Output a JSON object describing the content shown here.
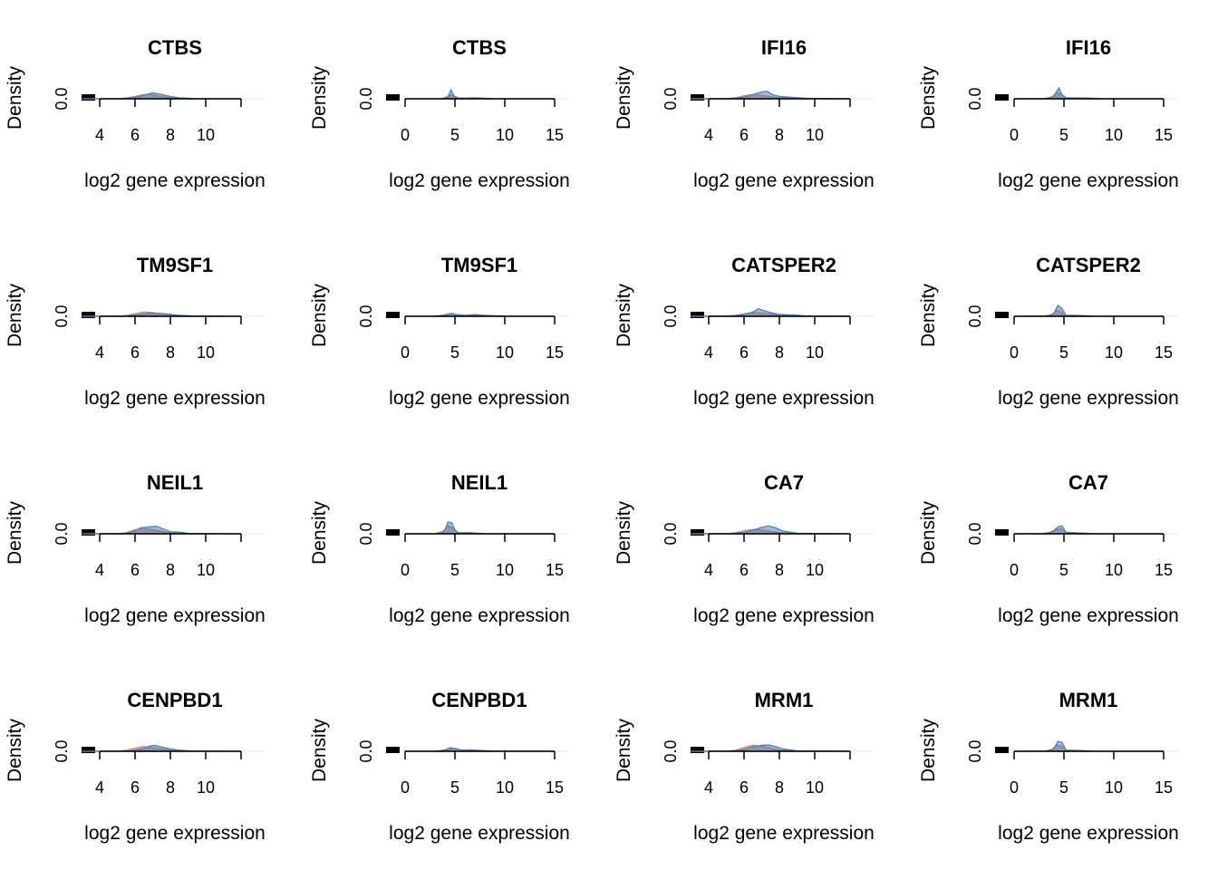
{
  "chart_data": [
    {
      "type": "area",
      "title": "CTBS",
      "xlabel": "log2 gene expression",
      "ylabel": "Density",
      "xticks": [
        4,
        6,
        8,
        10
      ],
      "xlim": [
        3,
        12
      ],
      "yticks": [
        "0.0"
      ],
      "series": [
        {
          "color": "#c77b6b",
          "x": [
            3.0,
            5.0,
            5.5,
            6.0,
            6.5,
            7.0,
            7.5,
            8.0,
            9.0,
            12.0
          ],
          "y": [
            0,
            0.01,
            0.04,
            0.12,
            0.22,
            0.2,
            0.12,
            0.05,
            0.01,
            0
          ]
        },
        {
          "color": "#4f7fae",
          "x": [
            3.0,
            5.5,
            6.0,
            6.5,
            7.0,
            7.5,
            8.0,
            8.5,
            9.5,
            12.0
          ],
          "y": [
            0,
            0.01,
            0.06,
            0.18,
            0.3,
            0.22,
            0.12,
            0.05,
            0.01,
            0
          ]
        }
      ]
    },
    {
      "type": "area",
      "title": "CTBS",
      "xlabel": "log2 gene expression",
      "ylabel": "Density",
      "xticks": [
        0,
        5,
        10,
        15
      ],
      "xlim": [
        0,
        15
      ],
      "yticks": [
        "0.0"
      ],
      "series": [
        {
          "color": "#c77b6b",
          "x": [
            0,
            3.5,
            4.2,
            4.6,
            5.0,
            5.5,
            7.0,
            9.0,
            15.0
          ],
          "y": [
            0,
            0.01,
            0.08,
            0.2,
            0.1,
            0.03,
            0.05,
            0.01,
            0
          ]
        },
        {
          "color": "#4f7fae",
          "x": [
            0,
            3.8,
            4.3,
            4.6,
            4.9,
            5.3,
            7.0,
            9.0,
            15.0
          ],
          "y": [
            0,
            0.01,
            0.12,
            0.45,
            0.15,
            0.03,
            0.04,
            0.01,
            0
          ]
        }
      ]
    },
    {
      "type": "area",
      "title": "IFI16",
      "xlabel": "log2 gene expression",
      "ylabel": "Density",
      "xticks": [
        4,
        6,
        8,
        10
      ],
      "xlim": [
        3,
        12
      ],
      "yticks": [
        "0.0"
      ],
      "series": [
        {
          "color": "#c77b6b",
          "x": [
            3.0,
            5.0,
            5.5,
            6.0,
            6.5,
            7.0,
            7.5,
            8.0,
            9.0,
            12.0
          ],
          "y": [
            0,
            0.01,
            0.05,
            0.15,
            0.22,
            0.16,
            0.1,
            0.05,
            0.02,
            0
          ]
        },
        {
          "color": "#4f7fae",
          "x": [
            3.0,
            5.5,
            6.0,
            6.5,
            7.0,
            7.3,
            7.6,
            8.0,
            9.0,
            9.5,
            12.0
          ],
          "y": [
            0,
            0.02,
            0.08,
            0.2,
            0.35,
            0.38,
            0.22,
            0.12,
            0.06,
            0.03,
            0
          ]
        }
      ]
    },
    {
      "type": "area",
      "title": "IFI16",
      "xlabel": "log2 gene expression",
      "ylabel": "Density",
      "xticks": [
        0,
        5,
        10,
        15
      ],
      "xlim": [
        0,
        15
      ],
      "yticks": [
        "0.0"
      ],
      "series": [
        {
          "color": "#c77b6b",
          "x": [
            0,
            3.0,
            3.8,
            4.3,
            4.7,
            5.2,
            7.0,
            9.0,
            15.0
          ],
          "y": [
            0,
            0.01,
            0.1,
            0.3,
            0.25,
            0.05,
            0.04,
            0.01,
            0
          ]
        },
        {
          "color": "#4f7fae",
          "x": [
            0,
            3.5,
            4.0,
            4.5,
            4.8,
            5.2,
            7.0,
            9.0,
            15.0
          ],
          "y": [
            0,
            0.01,
            0.15,
            0.55,
            0.2,
            0.04,
            0.04,
            0.01,
            0
          ]
        }
      ]
    },
    {
      "type": "area",
      "title": "TM9SF1",
      "xlabel": "log2 gene expression",
      "ylabel": "Density",
      "xticks": [
        4,
        6,
        8,
        10
      ],
      "xlim": [
        3,
        12
      ],
      "yticks": [
        "0.0"
      ],
      "series": [
        {
          "color": "#c77b6b",
          "x": [
            3.0,
            5.0,
            5.5,
            6.0,
            6.5,
            7.0,
            7.5,
            8.0,
            9.0,
            12.0
          ],
          "y": [
            0,
            0.01,
            0.04,
            0.12,
            0.22,
            0.18,
            0.12,
            0.06,
            0.02,
            0
          ]
        },
        {
          "color": "#4f7fae",
          "x": [
            3.0,
            5.5,
            6.0,
            6.5,
            7.0,
            7.5,
            8.0,
            8.5,
            9.5,
            12.0
          ],
          "y": [
            0,
            0.01,
            0.05,
            0.12,
            0.16,
            0.14,
            0.1,
            0.05,
            0.01,
            0
          ]
        }
      ]
    },
    {
      "type": "area",
      "title": "TM9SF1",
      "xlabel": "log2 gene expression",
      "ylabel": "Density",
      "xticks": [
        0,
        5,
        10,
        15
      ],
      "xlim": [
        0,
        15
      ],
      "yticks": [
        "0.0"
      ],
      "series": [
        {
          "color": "#c77b6b",
          "x": [
            0,
            3.0,
            4.0,
            4.5,
            5.0,
            6.0,
            7.0,
            8.0,
            10.0,
            15.0
          ],
          "y": [
            0,
            0.01,
            0.08,
            0.14,
            0.1,
            0.05,
            0.09,
            0.05,
            0.01,
            0
          ]
        },
        {
          "color": "#4f7fae",
          "x": [
            0,
            3.5,
            4.2,
            4.7,
            5.2,
            6.0,
            7.0,
            8.0,
            10.0,
            15.0
          ],
          "y": [
            0,
            0.01,
            0.08,
            0.15,
            0.08,
            0.04,
            0.07,
            0.04,
            0.01,
            0
          ]
        }
      ]
    },
    {
      "type": "area",
      "title": "CATSPER2",
      "xlabel": "log2 gene expression",
      "ylabel": "Density",
      "xticks": [
        4,
        6,
        8,
        10
      ],
      "xlim": [
        3,
        12
      ],
      "yticks": [
        "0.0"
      ],
      "series": [
        {
          "color": "#c77b6b",
          "x": [
            3.0,
            5.0,
            5.5,
            6.0,
            6.5,
            7.0,
            7.5,
            8.0,
            9.0,
            12.0
          ],
          "y": [
            0,
            0.01,
            0.05,
            0.12,
            0.18,
            0.16,
            0.11,
            0.06,
            0.02,
            0
          ]
        },
        {
          "color": "#4f7fae",
          "x": [
            3.0,
            5.5,
            6.0,
            6.5,
            6.8,
            7.1,
            7.5,
            8.0,
            9.0,
            9.5,
            12.0
          ],
          "y": [
            0,
            0.02,
            0.08,
            0.22,
            0.38,
            0.3,
            0.18,
            0.1,
            0.06,
            0.02,
            0
          ]
        }
      ]
    },
    {
      "type": "area",
      "title": "CATSPER2",
      "xlabel": "log2 gene expression",
      "ylabel": "Density",
      "xticks": [
        0,
        5,
        10,
        15
      ],
      "xlim": [
        0,
        15
      ],
      "yticks": [
        "0.0"
      ],
      "series": [
        {
          "color": "#c77b6b",
          "x": [
            0,
            3.0,
            3.8,
            4.3,
            4.7,
            5.2,
            6.5,
            8.0,
            15.0
          ],
          "y": [
            0,
            0.01,
            0.1,
            0.3,
            0.22,
            0.05,
            0.04,
            0.01,
            0
          ]
        },
        {
          "color": "#4f7fae",
          "x": [
            0,
            3.5,
            4.0,
            4.4,
            4.8,
            5.2,
            6.5,
            8.0,
            15.0
          ],
          "y": [
            0,
            0.01,
            0.15,
            0.55,
            0.4,
            0.05,
            0.04,
            0.01,
            0
          ]
        }
      ]
    },
    {
      "type": "area",
      "title": "NEIL1",
      "xlabel": "log2 gene expression",
      "ylabel": "Density",
      "xticks": [
        4,
        6,
        8,
        10
      ],
      "xlim": [
        3,
        12
      ],
      "yticks": [
        "0.0"
      ],
      "series": [
        {
          "color": "#c77b6b",
          "x": [
            3.0,
            5.0,
            5.5,
            6.0,
            6.5,
            7.0,
            7.5,
            8.0,
            9.0,
            12.0
          ],
          "y": [
            0,
            0.01,
            0.05,
            0.2,
            0.28,
            0.2,
            0.12,
            0.05,
            0.02,
            0
          ]
        },
        {
          "color": "#4f7fae",
          "x": [
            3.0,
            5.5,
            6.0,
            6.3,
            6.8,
            7.2,
            7.6,
            8.0,
            8.6,
            9.0,
            12.0
          ],
          "y": [
            0,
            0.02,
            0.15,
            0.3,
            0.35,
            0.38,
            0.25,
            0.1,
            0.08,
            0.02,
            0
          ]
        }
      ]
    },
    {
      "type": "area",
      "title": "NEIL1",
      "xlabel": "log2 gene expression",
      "ylabel": "Density",
      "xticks": [
        0,
        5,
        10,
        15
      ],
      "xlim": [
        0,
        15
      ],
      "yticks": [
        "0.0"
      ],
      "series": [
        {
          "color": "#c77b6b",
          "x": [
            0,
            3.0,
            3.8,
            4.3,
            4.8,
            5.3,
            6.5,
            8.0,
            15.0
          ],
          "y": [
            0,
            0.01,
            0.12,
            0.4,
            0.3,
            0.05,
            0.06,
            0.01,
            0
          ]
        },
        {
          "color": "#4f7fae",
          "x": [
            0,
            3.5,
            4.0,
            4.3,
            4.7,
            5.0,
            5.4,
            6.5,
            8.0,
            15.0
          ],
          "y": [
            0,
            0.01,
            0.2,
            0.6,
            0.55,
            0.2,
            0.04,
            0.05,
            0.01,
            0
          ]
        }
      ]
    },
    {
      "type": "area",
      "title": "CA7",
      "xlabel": "log2 gene expression",
      "ylabel": "Density",
      "xticks": [
        4,
        6,
        8,
        10
      ],
      "xlim": [
        3,
        12
      ],
      "yticks": [
        "0.0"
      ],
      "series": [
        {
          "color": "#c77b6b",
          "x": [
            3.0,
            5.0,
            5.5,
            6.0,
            6.5,
            7.0,
            7.5,
            8.0,
            9.0,
            12.0
          ],
          "y": [
            0,
            0.01,
            0.05,
            0.15,
            0.22,
            0.18,
            0.12,
            0.06,
            0.02,
            0
          ]
        },
        {
          "color": "#4f7fae",
          "x": [
            3.0,
            5.5,
            6.0,
            6.5,
            7.0,
            7.4,
            7.8,
            8.2,
            9.0,
            12.0
          ],
          "y": [
            0,
            0.02,
            0.06,
            0.18,
            0.32,
            0.4,
            0.3,
            0.14,
            0.03,
            0
          ]
        }
      ]
    },
    {
      "type": "area",
      "title": "CA7",
      "xlabel": "log2 gene expression",
      "ylabel": "Density",
      "xticks": [
        0,
        5,
        10,
        15
      ],
      "xlim": [
        0,
        15
      ],
      "yticks": [
        "0.0"
      ],
      "series": [
        {
          "color": "#c77b6b",
          "x": [
            0,
            2.5,
            3.5,
            4.2,
            4.7,
            5.2,
            6.5,
            8.0,
            15.0
          ],
          "y": [
            0,
            0.01,
            0.06,
            0.2,
            0.25,
            0.06,
            0.04,
            0.01,
            0
          ]
        },
        {
          "color": "#4f7fae",
          "x": [
            0,
            3.0,
            3.8,
            4.4,
            4.8,
            5.2,
            6.5,
            8.0,
            15.0
          ],
          "y": [
            0,
            0.01,
            0.08,
            0.35,
            0.4,
            0.08,
            0.04,
            0.01,
            0
          ]
        }
      ]
    },
    {
      "type": "area",
      "title": "CENPBD1",
      "xlabel": "log2 gene expression",
      "ylabel": "Density",
      "xticks": [
        4,
        6,
        8,
        10
      ],
      "xlim": [
        3,
        12
      ],
      "yticks": [
        "0.0"
      ],
      "series": [
        {
          "color": "#c77b6b",
          "x": [
            3.0,
            5.0,
            5.5,
            6.0,
            6.5,
            7.0,
            7.5,
            8.0,
            9.0,
            12.0
          ],
          "y": [
            0,
            0.01,
            0.05,
            0.15,
            0.24,
            0.18,
            0.12,
            0.06,
            0.02,
            0
          ]
        },
        {
          "color": "#4f7fae",
          "x": [
            3.0,
            5.5,
            6.0,
            6.5,
            6.8,
            7.1,
            7.5,
            8.0,
            8.5,
            9.5,
            12.0
          ],
          "y": [
            0,
            0.01,
            0.05,
            0.14,
            0.26,
            0.3,
            0.22,
            0.12,
            0.06,
            0.01,
            0
          ]
        }
      ]
    },
    {
      "type": "area",
      "title": "CENPBD1",
      "xlabel": "log2 gene expression",
      "ylabel": "Density",
      "xticks": [
        0,
        5,
        10,
        15
      ],
      "xlim": [
        0,
        15
      ],
      "yticks": [
        "0.0"
      ],
      "series": [
        {
          "color": "#c77b6b",
          "x": [
            0,
            3.0,
            4.0,
            4.5,
            5.0,
            5.6,
            6.5,
            8.0,
            10.0,
            15.0
          ],
          "y": [
            0,
            0.01,
            0.08,
            0.18,
            0.15,
            0.06,
            0.08,
            0.03,
            0.01,
            0
          ]
        },
        {
          "color": "#4f7fae",
          "x": [
            0,
            3.5,
            4.2,
            4.7,
            5.2,
            5.8,
            6.5,
            8.0,
            10.0,
            15.0
          ],
          "y": [
            0,
            0.01,
            0.08,
            0.16,
            0.12,
            0.05,
            0.06,
            0.03,
            0.01,
            0
          ]
        }
      ]
    },
    {
      "type": "area",
      "title": "MRM1",
      "xlabel": "log2 gene expression",
      "ylabel": "Density",
      "xticks": [
        4,
        6,
        8,
        10
      ],
      "xlim": [
        3,
        12
      ],
      "yticks": [
        "0.0"
      ],
      "series": [
        {
          "color": "#c77b6b",
          "x": [
            3.0,
            5.0,
            5.5,
            6.0,
            6.5,
            7.0,
            7.5,
            8.0,
            9.0,
            12.0
          ],
          "y": [
            0,
            0.01,
            0.05,
            0.18,
            0.3,
            0.26,
            0.16,
            0.06,
            0.02,
            0
          ]
        },
        {
          "color": "#4f7fae",
          "x": [
            3.0,
            5.5,
            6.0,
            6.5,
            7.0,
            7.4,
            7.8,
            8.2,
            9.0,
            12.0
          ],
          "y": [
            0,
            0.02,
            0.08,
            0.22,
            0.3,
            0.32,
            0.24,
            0.12,
            0.03,
            0
          ]
        }
      ]
    },
    {
      "type": "area",
      "title": "MRM1",
      "xlabel": "log2 gene expression",
      "ylabel": "Density",
      "xticks": [
        0,
        5,
        10,
        15
      ],
      "xlim": [
        0,
        15
      ],
      "yticks": [
        "0.0"
      ],
      "series": [
        {
          "color": "#c77b6b",
          "x": [
            0,
            3.0,
            3.8,
            4.3,
            4.8,
            5.3,
            6.5,
            8.0,
            15.0
          ],
          "y": [
            0,
            0.01,
            0.1,
            0.3,
            0.25,
            0.05,
            0.04,
            0.01,
            0
          ]
        },
        {
          "color": "#4f7fae",
          "x": [
            0,
            3.5,
            4.0,
            4.4,
            4.8,
            5.2,
            6.5,
            8.0,
            15.0
          ],
          "y": [
            0,
            0.01,
            0.15,
            0.5,
            0.45,
            0.06,
            0.04,
            0.01,
            0
          ]
        }
      ]
    }
  ]
}
